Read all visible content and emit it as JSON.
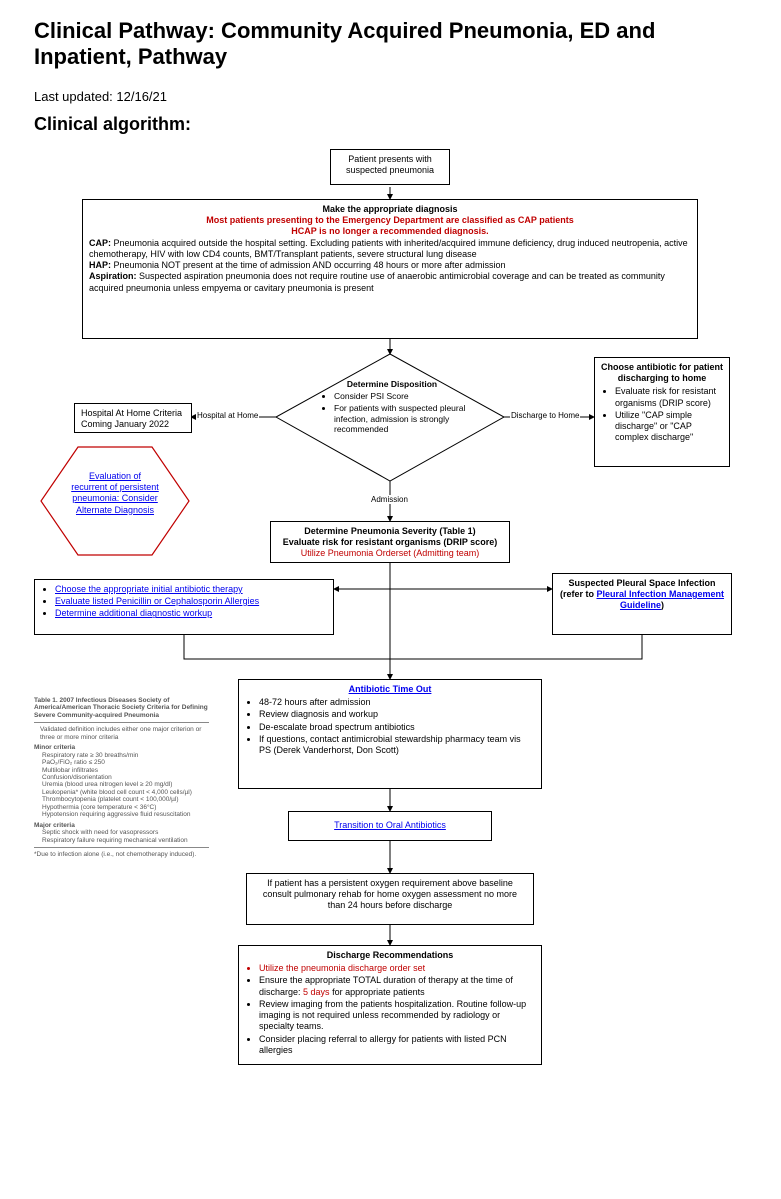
{
  "title": "Clinical Pathway: Community Acquired Pneumonia, ED and Inpatient, Pathway",
  "last_updated_label": "Last updated: 12/16/21",
  "section_heading": "Clinical algorithm:",
  "colors": {
    "text": "#000000",
    "red": "#c00000",
    "link": "#0000ee",
    "border": "#000000",
    "hex_border": "#c00000",
    "background": "#ffffff"
  },
  "nodes": {
    "start": {
      "text": "Patient presents with suspected pneumonia"
    },
    "diagnosis": {
      "header": "Make the appropriate diagnosis",
      "red_line1": "Most patients presenting to the Emergency Department are classified as CAP patients",
      "red_line2": "HCAP is no longer a recommended diagnosis.",
      "cap_label": "CAP:",
      "cap_text": " Pneumonia acquired outside the hospital setting. Excluding patients with inherited/acquired immune deficiency, drug induced neutropenia, active chemotherapy, HIV with low CD4 counts, BMT/Transplant patients, severe structural lung disease",
      "hap_label": "HAP:",
      "hap_text": " Pneumonia NOT present at the time of admission AND occurring 48 hours or more after admission",
      "asp_label": "Aspiration:",
      "asp_text": " Suspected aspiration pneumonia does not require routine use of anaerobic antimicrobial coverage and can be treated as community acquired pneumonia unless empyema or cavitary pneumonia is present"
    },
    "disposition": {
      "header": "Determine Disposition",
      "b1": "Consider PSI Score",
      "b2": "For patients with suspected pleural infection, admission is strongly recommended"
    },
    "hospital_at_home": {
      "text": "Hospital At Home Criteria Coming January 2022"
    },
    "discharge_home": {
      "header": "Choose antibiotic for patient discharging to home",
      "b1": "Evaluate risk for resistant organisms (DRIP score)",
      "b2": "Utilize \"CAP simple discharge\" or \"CAP complex discharge\""
    },
    "hexagon": {
      "l1": "Evaluation of",
      "l2": "recurrent of persistent",
      "l3": "pneumonia: Consider",
      "l4": "Alternate Diagnosis"
    },
    "severity": {
      "l1": "Determine Pneumonia Severity (Table 1)",
      "l2": "Evaluate risk for resistant organisms (DRIP score)",
      "l3": "Utilize Pneumonia Orderset (Admitting team)"
    },
    "left_links": {
      "b1": "Choose the appropriate initial antibiotic therapy",
      "b2": "Evaluate listed Penicillin or Cephalosporin Allergies",
      "b3": "Determine additional diagnostic workup"
    },
    "pleural": {
      "l1": "Suspected Pleural Space Infection",
      "l2a": "(refer to ",
      "l2b": "Pleural Infection Management Guideline",
      "l2c": ")"
    },
    "timeout": {
      "header": "Antibiotic Time Out",
      "b1": "48-72 hours after admission",
      "b2": "Review diagnosis and workup",
      "b3": "De-escalate broad spectrum antibiotics",
      "b4": "If questions, contact antimicrobial stewardship pharmacy team vis PS (Derek Vanderhorst, Don Scott)"
    },
    "oral": {
      "text": "Transition to Oral Antibiotics"
    },
    "oxygen": {
      "text": "If patient has a persistent oxygen requirement above baseline consult pulmonary rehab for home oxygen assessment no more than 24 hours before discharge"
    },
    "discharge_recs": {
      "header": "Discharge Recommendations",
      "b1": "Utilize the pneumonia discharge order set",
      "b2a": "Ensure the appropriate TOTAL duration of therapy at the time of discharge: ",
      "b2_red": "5 days",
      "b2b": " for appropriate patients",
      "b3": "Review imaging from the patients hospitalization. Routine follow-up imaging is not required unless recommended by radiology or specialty teams.",
      "b4": "Consider placing referral to allergy for patients with listed PCN allergies"
    }
  },
  "edge_labels": {
    "hospital_at_home": "Hospital at Home",
    "discharge_to_home": "Discharge to Home",
    "admission": "Admission"
  },
  "table1": {
    "title": "Table 1. 2007 Infectious Diseases Society of America/American Thoracic Society Criteria for Defining Severe Community-acquired Pneumonia",
    "validated": "Validated definition includes either one major criterion or three or more minor criteria",
    "minor_header": "Minor criteria",
    "minor": [
      "Respiratory rate ≥ 30 breaths/min",
      "PaO₂/FiO₂ ratio ≤ 250",
      "Multilobar infiltrates",
      "Confusion/disorientation",
      "Uremia (blood urea nitrogen level ≥ 20 mg/dl)",
      "Leukopenia* (white blood cell count < 4,000 cells/µl)",
      "Thrombocytopenia (platelet count < 100,000/µl)",
      "Hypothermia (core temperature < 36°C)",
      "Hypotension requiring aggressive fluid resuscitation"
    ],
    "major_header": "Major criteria",
    "major": [
      "Septic shock with need for vasopressors",
      "Respiratory failure requiring mechanical ventilation"
    ],
    "footnote": "*Due to infection alone (i.e., not chemotherapy induced)."
  }
}
